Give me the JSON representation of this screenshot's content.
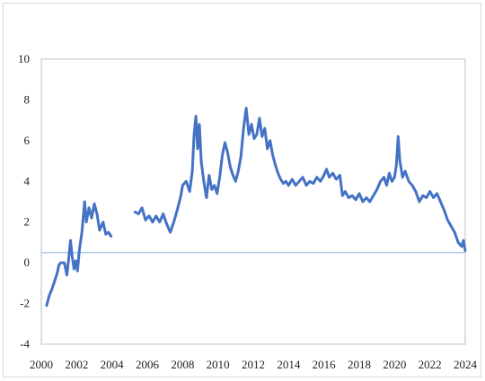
{
  "chart_data": {
    "type": "line",
    "title": "",
    "xlabel": "",
    "ylabel": "",
    "xlim": [
      2000,
      2024
    ],
    "ylim": [
      -4,
      10
    ],
    "x_ticks": [
      "2000",
      "2002",
      "2004",
      "2006",
      "2008",
      "2010",
      "2012",
      "2014",
      "2016",
      "2018",
      "2020",
      "2022",
      "2024"
    ],
    "y_ticks": [
      "-4",
      "-2",
      "0",
      "2",
      "4",
      "6",
      "8",
      "10"
    ],
    "grid": false,
    "legend": "none",
    "reference_line": {
      "y": 0.5,
      "color": "#9dc3e6"
    },
    "series": [
      {
        "color": "#4472c4",
        "segments": [
          [
            [
              2000.3,
              -2.1
            ],
            [
              2000.45,
              -1.6
            ],
            [
              2000.6,
              -1.3
            ],
            [
              2000.75,
              -0.9
            ],
            [
              2000.9,
              -0.5
            ],
            [
              2001.0,
              -0.1
            ],
            [
              2001.1,
              0.0
            ],
            [
              2001.3,
              0.0
            ],
            [
              2001.45,
              -0.6
            ],
            [
              2001.55,
              0.2
            ],
            [
              2001.65,
              1.1
            ],
            [
              2001.75,
              0.3
            ],
            [
              2001.85,
              -0.3
            ],
            [
              2001.95,
              0.1
            ],
            [
              2002.05,
              -0.4
            ],
            [
              2002.15,
              0.6
            ],
            [
              2002.3,
              1.5
            ],
            [
              2002.45,
              3.0
            ],
            [
              2002.55,
              2.0
            ],
            [
              2002.7,
              2.7
            ],
            [
              2002.85,
              2.2
            ],
            [
              2003.0,
              2.9
            ],
            [
              2003.15,
              2.4
            ],
            [
              2003.3,
              1.6
            ],
            [
              2003.5,
              2.0
            ],
            [
              2003.65,
              1.4
            ],
            [
              2003.8,
              1.5
            ],
            [
              2003.95,
              1.3
            ]
          ],
          [
            [
              2005.3,
              2.5
            ],
            [
              2005.5,
              2.4
            ],
            [
              2005.7,
              2.7
            ],
            [
              2005.9,
              2.1
            ],
            [
              2006.1,
              2.3
            ],
            [
              2006.3,
              2.0
            ],
            [
              2006.5,
              2.3
            ],
            [
              2006.7,
              2.0
            ],
            [
              2006.9,
              2.4
            ],
            [
              2007.1,
              1.9
            ],
            [
              2007.3,
              1.5
            ],
            [
              2007.5,
              2.0
            ],
            [
              2007.7,
              2.6
            ],
            [
              2007.9,
              3.3
            ],
            [
              2008.0,
              3.8
            ],
            [
              2008.2,
              4.0
            ],
            [
              2008.4,
              3.5
            ],
            [
              2008.55,
              4.5
            ],
            [
              2008.65,
              6.3
            ],
            [
              2008.75,
              7.2
            ],
            [
              2008.85,
              5.6
            ],
            [
              2008.95,
              6.8
            ],
            [
              2009.05,
              5.0
            ],
            [
              2009.2,
              4.0
            ],
            [
              2009.35,
              3.2
            ],
            [
              2009.5,
              4.3
            ],
            [
              2009.65,
              3.6
            ],
            [
              2009.8,
              3.8
            ],
            [
              2009.95,
              3.4
            ],
            [
              2010.1,
              4.2
            ],
            [
              2010.25,
              5.3
            ],
            [
              2010.4,
              5.9
            ],
            [
              2010.55,
              5.4
            ],
            [
              2010.7,
              4.7
            ],
            [
              2010.85,
              4.3
            ],
            [
              2011.0,
              4.0
            ],
            [
              2011.15,
              4.5
            ],
            [
              2011.3,
              5.2
            ],
            [
              2011.45,
              6.6
            ],
            [
              2011.6,
              7.6
            ],
            [
              2011.75,
              6.3
            ],
            [
              2011.9,
              6.8
            ],
            [
              2012.05,
              6.1
            ],
            [
              2012.2,
              6.3
            ],
            [
              2012.35,
              7.1
            ],
            [
              2012.5,
              6.2
            ],
            [
              2012.65,
              6.6
            ],
            [
              2012.8,
              5.6
            ],
            [
              2012.95,
              6.0
            ],
            [
              2013.1,
              5.3
            ],
            [
              2013.25,
              4.8
            ],
            [
              2013.4,
              4.4
            ],
            [
              2013.55,
              4.1
            ],
            [
              2013.7,
              3.9
            ],
            [
              2013.85,
              4.0
            ],
            [
              2014.0,
              3.8
            ],
            [
              2014.2,
              4.1
            ],
            [
              2014.4,
              3.8
            ],
            [
              2014.6,
              4.0
            ],
            [
              2014.8,
              4.2
            ],
            [
              2015.0,
              3.8
            ],
            [
              2015.2,
              4.0
            ],
            [
              2015.4,
              3.9
            ],
            [
              2015.6,
              4.2
            ],
            [
              2015.8,
              4.0
            ],
            [
              2016.0,
              4.3
            ],
            [
              2016.15,
              4.6
            ],
            [
              2016.3,
              4.2
            ],
            [
              2016.5,
              4.4
            ],
            [
              2016.7,
              4.1
            ],
            [
              2016.9,
              4.3
            ],
            [
              2017.05,
              3.3
            ],
            [
              2017.2,
              3.5
            ],
            [
              2017.4,
              3.2
            ],
            [
              2017.6,
              3.3
            ],
            [
              2017.8,
              3.1
            ],
            [
              2018.0,
              3.4
            ],
            [
              2018.2,
              3.0
            ],
            [
              2018.4,
              3.2
            ],
            [
              2018.6,
              3.0
            ],
            [
              2018.8,
              3.3
            ],
            [
              2019.0,
              3.6
            ],
            [
              2019.2,
              4.0
            ],
            [
              2019.4,
              4.2
            ],
            [
              2019.55,
              3.8
            ],
            [
              2019.7,
              4.4
            ],
            [
              2019.85,
              4.0
            ],
            [
              2020.0,
              4.2
            ],
            [
              2020.1,
              4.8
            ],
            [
              2020.2,
              6.2
            ],
            [
              2020.3,
              5.0
            ],
            [
              2020.45,
              4.2
            ],
            [
              2020.6,
              4.5
            ],
            [
              2020.8,
              4.0
            ],
            [
              2021.0,
              3.8
            ],
            [
              2021.2,
              3.5
            ],
            [
              2021.4,
              3.0
            ],
            [
              2021.6,
              3.3
            ],
            [
              2021.8,
              3.2
            ],
            [
              2022.0,
              3.5
            ],
            [
              2022.2,
              3.2
            ],
            [
              2022.4,
              3.4
            ],
            [
              2022.6,
              3.0
            ],
            [
              2022.8,
              2.6
            ],
            [
              2023.0,
              2.1
            ],
            [
              2023.2,
              1.8
            ],
            [
              2023.4,
              1.5
            ],
            [
              2023.6,
              1.0
            ],
            [
              2023.8,
              0.8
            ],
            [
              2023.9,
              1.1
            ],
            [
              2024.0,
              0.6
            ]
          ]
        ]
      }
    ]
  }
}
